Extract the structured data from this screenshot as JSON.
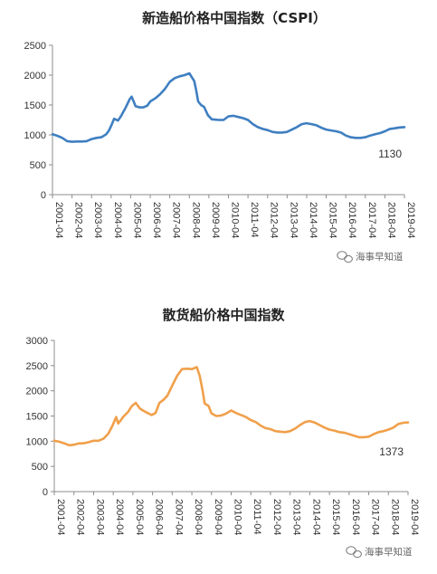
{
  "watermark": {
    "icon": "wechat-icon",
    "text": "海事早知道"
  },
  "chart_data": [
    {
      "type": "line",
      "title": "新造船价格中国指数（CSPI）",
      "ylim": [
        0,
        2500
      ],
      "yticks": [
        0,
        500,
        1000,
        1500,
        2000,
        2500
      ],
      "xlabels": [
        "2001-04",
        "2002-04",
        "2003-04",
        "2004-04",
        "2005-04",
        "2006-04",
        "2007-04",
        "2008-04",
        "2009-04",
        "2010-04",
        "2011-04",
        "2012-04",
        "2013-04",
        "2014-04",
        "2015-04",
        "2016-04",
        "2017-04",
        "2018-04",
        "2019-04"
      ],
      "grid": false,
      "legend": "none",
      "end_label": "1130",
      "color": "#3f7fc1",
      "series": [
        {
          "x": [
            2001.25,
            2001.5,
            2001.75,
            2002.0,
            2002.25,
            2002.5,
            2002.75,
            2003.0,
            2003.25,
            2003.5,
            2003.75,
            2004.0,
            2004.15,
            2004.25,
            2004.4,
            2004.6,
            2004.75,
            2005.0,
            2005.2,
            2005.3,
            2005.4,
            2005.5,
            2005.7,
            2005.9,
            2006.1,
            2006.25,
            2006.5,
            2006.75,
            2007.0,
            2007.25,
            2007.5,
            2007.75,
            2008.0,
            2008.25,
            2008.5,
            2008.6,
            2008.7,
            2008.85,
            2009.0,
            2009.2,
            2009.4,
            2009.6,
            2009.75,
            2010.0,
            2010.25,
            2010.5,
            2010.75,
            2011.0,
            2011.25,
            2011.5,
            2011.75,
            2012.0,
            2012.25,
            2012.5,
            2012.75,
            2013.0,
            2013.25,
            2013.5,
            2013.75,
            2014.0,
            2014.25,
            2014.5,
            2014.75,
            2015.0,
            2015.25,
            2015.5,
            2015.75,
            2016.0,
            2016.25,
            2016.5,
            2016.75,
            2017.0,
            2017.25,
            2017.5,
            2017.75,
            2018.0,
            2018.25,
            2018.5,
            2018.75,
            2019.0,
            2019.25
          ],
          "y": [
            1010,
            985,
            950,
            895,
            885,
            890,
            890,
            895,
            930,
            950,
            960,
            1010,
            1080,
            1150,
            1270,
            1240,
            1310,
            1460,
            1600,
            1640,
            1560,
            1480,
            1460,
            1460,
            1490,
            1560,
            1610,
            1680,
            1770,
            1890,
            1950,
            1980,
            2000,
            2030,
            1900,
            1750,
            1560,
            1500,
            1470,
            1330,
            1260,
            1255,
            1250,
            1250,
            1310,
            1320,
            1300,
            1280,
            1250,
            1180,
            1130,
            1100,
            1080,
            1050,
            1040,
            1040,
            1050,
            1090,
            1130,
            1180,
            1195,
            1180,
            1160,
            1120,
            1090,
            1075,
            1060,
            1040,
            990,
            960,
            950,
            950,
            960,
            990,
            1010,
            1030,
            1060,
            1100,
            1110,
            1125,
            1130
          ]
        }
      ]
    },
    {
      "type": "line",
      "title": "散货船价格中国指数",
      "ylim": [
        0,
        3000
      ],
      "yticks": [
        0,
        500,
        1000,
        1500,
        2000,
        2500,
        3000
      ],
      "xlabels": [
        "2001-04",
        "2002-04",
        "2003-04",
        "2004-04",
        "2005-04",
        "2006-04",
        "2007-04",
        "2008-04",
        "2009-04",
        "2010-04",
        "2011-04",
        "2012-04",
        "2013-04",
        "2014-04",
        "2015-04",
        "2016-04",
        "2017-04",
        "2018-04",
        "2019-04"
      ],
      "grid": false,
      "legend": "none",
      "end_label": "1373",
      "color": "#f0a04b",
      "series": [
        {
          "x": [
            2001.25,
            2001.5,
            2001.75,
            2002.0,
            2002.25,
            2002.5,
            2002.75,
            2003.0,
            2003.25,
            2003.5,
            2003.75,
            2004.0,
            2004.2,
            2004.4,
            2004.5,
            2004.6,
            2004.75,
            2005.0,
            2005.2,
            2005.4,
            2005.6,
            2005.8,
            2006.0,
            2006.2,
            2006.4,
            2006.6,
            2006.8,
            2007.0,
            2007.25,
            2007.5,
            2007.75,
            2008.0,
            2008.25,
            2008.5,
            2008.65,
            2008.8,
            2008.9,
            2009.1,
            2009.25,
            2009.5,
            2009.75,
            2010.0,
            2010.25,
            2010.5,
            2010.75,
            2011.0,
            2011.25,
            2011.5,
            2011.75,
            2012.0,
            2012.25,
            2012.5,
            2012.75,
            2013.0,
            2013.25,
            2013.5,
            2013.75,
            2014.0,
            2014.25,
            2014.5,
            2014.75,
            2015.0,
            2015.25,
            2015.5,
            2015.75,
            2016.0,
            2016.25,
            2016.5,
            2016.75,
            2017.0,
            2017.25,
            2017.5,
            2017.75,
            2018.0,
            2018.25,
            2018.5,
            2018.75,
            2019.0,
            2019.25
          ],
          "y": [
            1010,
            990,
            960,
            920,
            930,
            955,
            960,
            980,
            1010,
            1010,
            1050,
            1150,
            1300,
            1480,
            1350,
            1400,
            1480,
            1580,
            1700,
            1760,
            1650,
            1600,
            1560,
            1520,
            1560,
            1760,
            1820,
            1900,
            2100,
            2300,
            2430,
            2440,
            2430,
            2470,
            2300,
            2000,
            1750,
            1700,
            1550,
            1500,
            1510,
            1550,
            1610,
            1560,
            1520,
            1480,
            1420,
            1380,
            1310,
            1260,
            1240,
            1200,
            1190,
            1180,
            1200,
            1250,
            1320,
            1380,
            1400,
            1370,
            1320,
            1270,
            1230,
            1210,
            1180,
            1170,
            1140,
            1110,
            1080,
            1080,
            1090,
            1140,
            1180,
            1200,
            1230,
            1270,
            1340,
            1365,
            1373
          ]
        }
      ]
    }
  ]
}
